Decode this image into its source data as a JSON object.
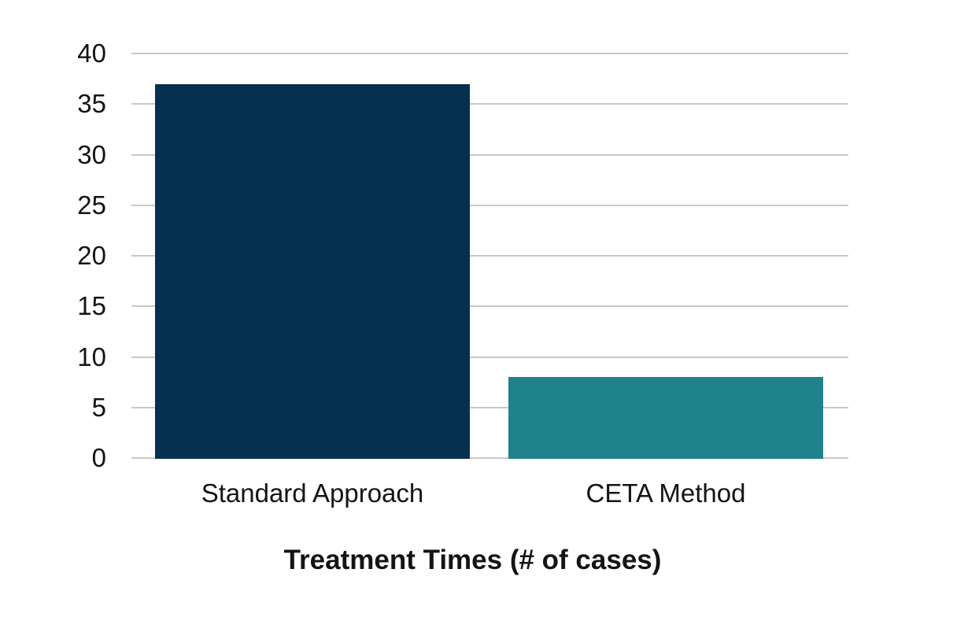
{
  "chart_data": {
    "type": "bar",
    "title": "Treatment Times (# of cases)",
    "title_position": "bottom",
    "categories": [
      "Standard Approach",
      "CETA Method"
    ],
    "values": [
      37,
      8
    ],
    "series": [
      {
        "name": "Treatment Times (# of cases)",
        "values": [
          37,
          8
        ]
      }
    ],
    "bar_colors": [
      "#05304F",
      "#20828A"
    ],
    "ylim": [
      0,
      40
    ],
    "ytick_step": 5,
    "ytick_labels": [
      "0",
      "5",
      "10",
      "15",
      "20",
      "25",
      "30",
      "35",
      "40"
    ],
    "xlabel": "",
    "ylabel": "",
    "grid": "horizontal",
    "legend": "none",
    "colors": {
      "gridline": "#C8C8C8",
      "text": "#141414",
      "background": "#FFFFFF"
    }
  }
}
